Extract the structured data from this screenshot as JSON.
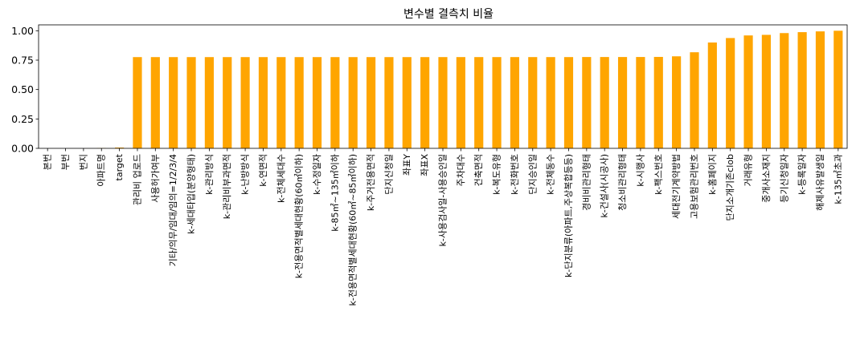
{
  "chart_data": {
    "type": "bar",
    "title": "변수별 결측치 비율",
    "xlabel": "",
    "ylabel": "",
    "ylim": [
      0,
      1.05
    ],
    "yticks": [
      "0.00",
      "0.25",
      "0.50",
      "0.75",
      "1.00"
    ],
    "ytick_values": [
      0,
      0.25,
      0.5,
      0.75,
      1.0
    ],
    "grid": false,
    "legend": "none",
    "bar_color": "#FFA500",
    "categories": [
      "본번",
      "부번",
      "번지",
      "아파트명",
      "target",
      "관리비 업로드",
      "사용허가여부",
      "기타/의무/임대/임의=1/2/3/4",
      "k-세대타입(분양형태)",
      "k-관리방식",
      "k-관리비부과면적",
      "k-난방방식",
      "k-연면적",
      "k-전체세대수",
      "k-전용면적별세대현황(60㎡이하)",
      "k-수정일자",
      "k-85㎡~135㎡이하",
      "k-전용면적별세대현황(60㎡~85㎡이하)",
      "k-주거전용면적",
      "단지신청일",
      "좌표Y",
      "좌표X",
      "k-사용검사일-사용승인일",
      "주차대수",
      "건축면적",
      "k-복도유형",
      "k-전화번호",
      "단지승인일",
      "k-전체동수",
      "k-단지분류(아파트,주상복합등등)",
      "경비비관리형태",
      "k-건설사(시공사)",
      "청소비관리형태",
      "k-시행사",
      "k-팩스번호",
      "세대전기계약방법",
      "고용보험관리번호",
      "k-홈페이지",
      "단지소개기존clob",
      "거래유형",
      "중개사소재지",
      "등기신청일자",
      "k-등록일자",
      "해제사유발생일",
      "k-135㎡초과"
    ],
    "values": [
      0,
      0,
      0.0002,
      0.0019,
      0.0065,
      0.7758,
      0.7758,
      0.7758,
      0.7758,
      0.7758,
      0.7758,
      0.7758,
      0.7758,
      0.7758,
      0.7758,
      0.7758,
      0.7758,
      0.7758,
      0.7758,
      0.7758,
      0.7758,
      0.7758,
      0.776,
      0.776,
      0.776,
      0.776,
      0.776,
      0.776,
      0.776,
      0.776,
      0.7765,
      0.7765,
      0.7765,
      0.7767,
      0.7775,
      0.7825,
      0.817,
      0.8999,
      0.9379,
      0.96,
      0.965,
      0.98,
      0.988,
      0.9945,
      0.9999
    ]
  }
}
